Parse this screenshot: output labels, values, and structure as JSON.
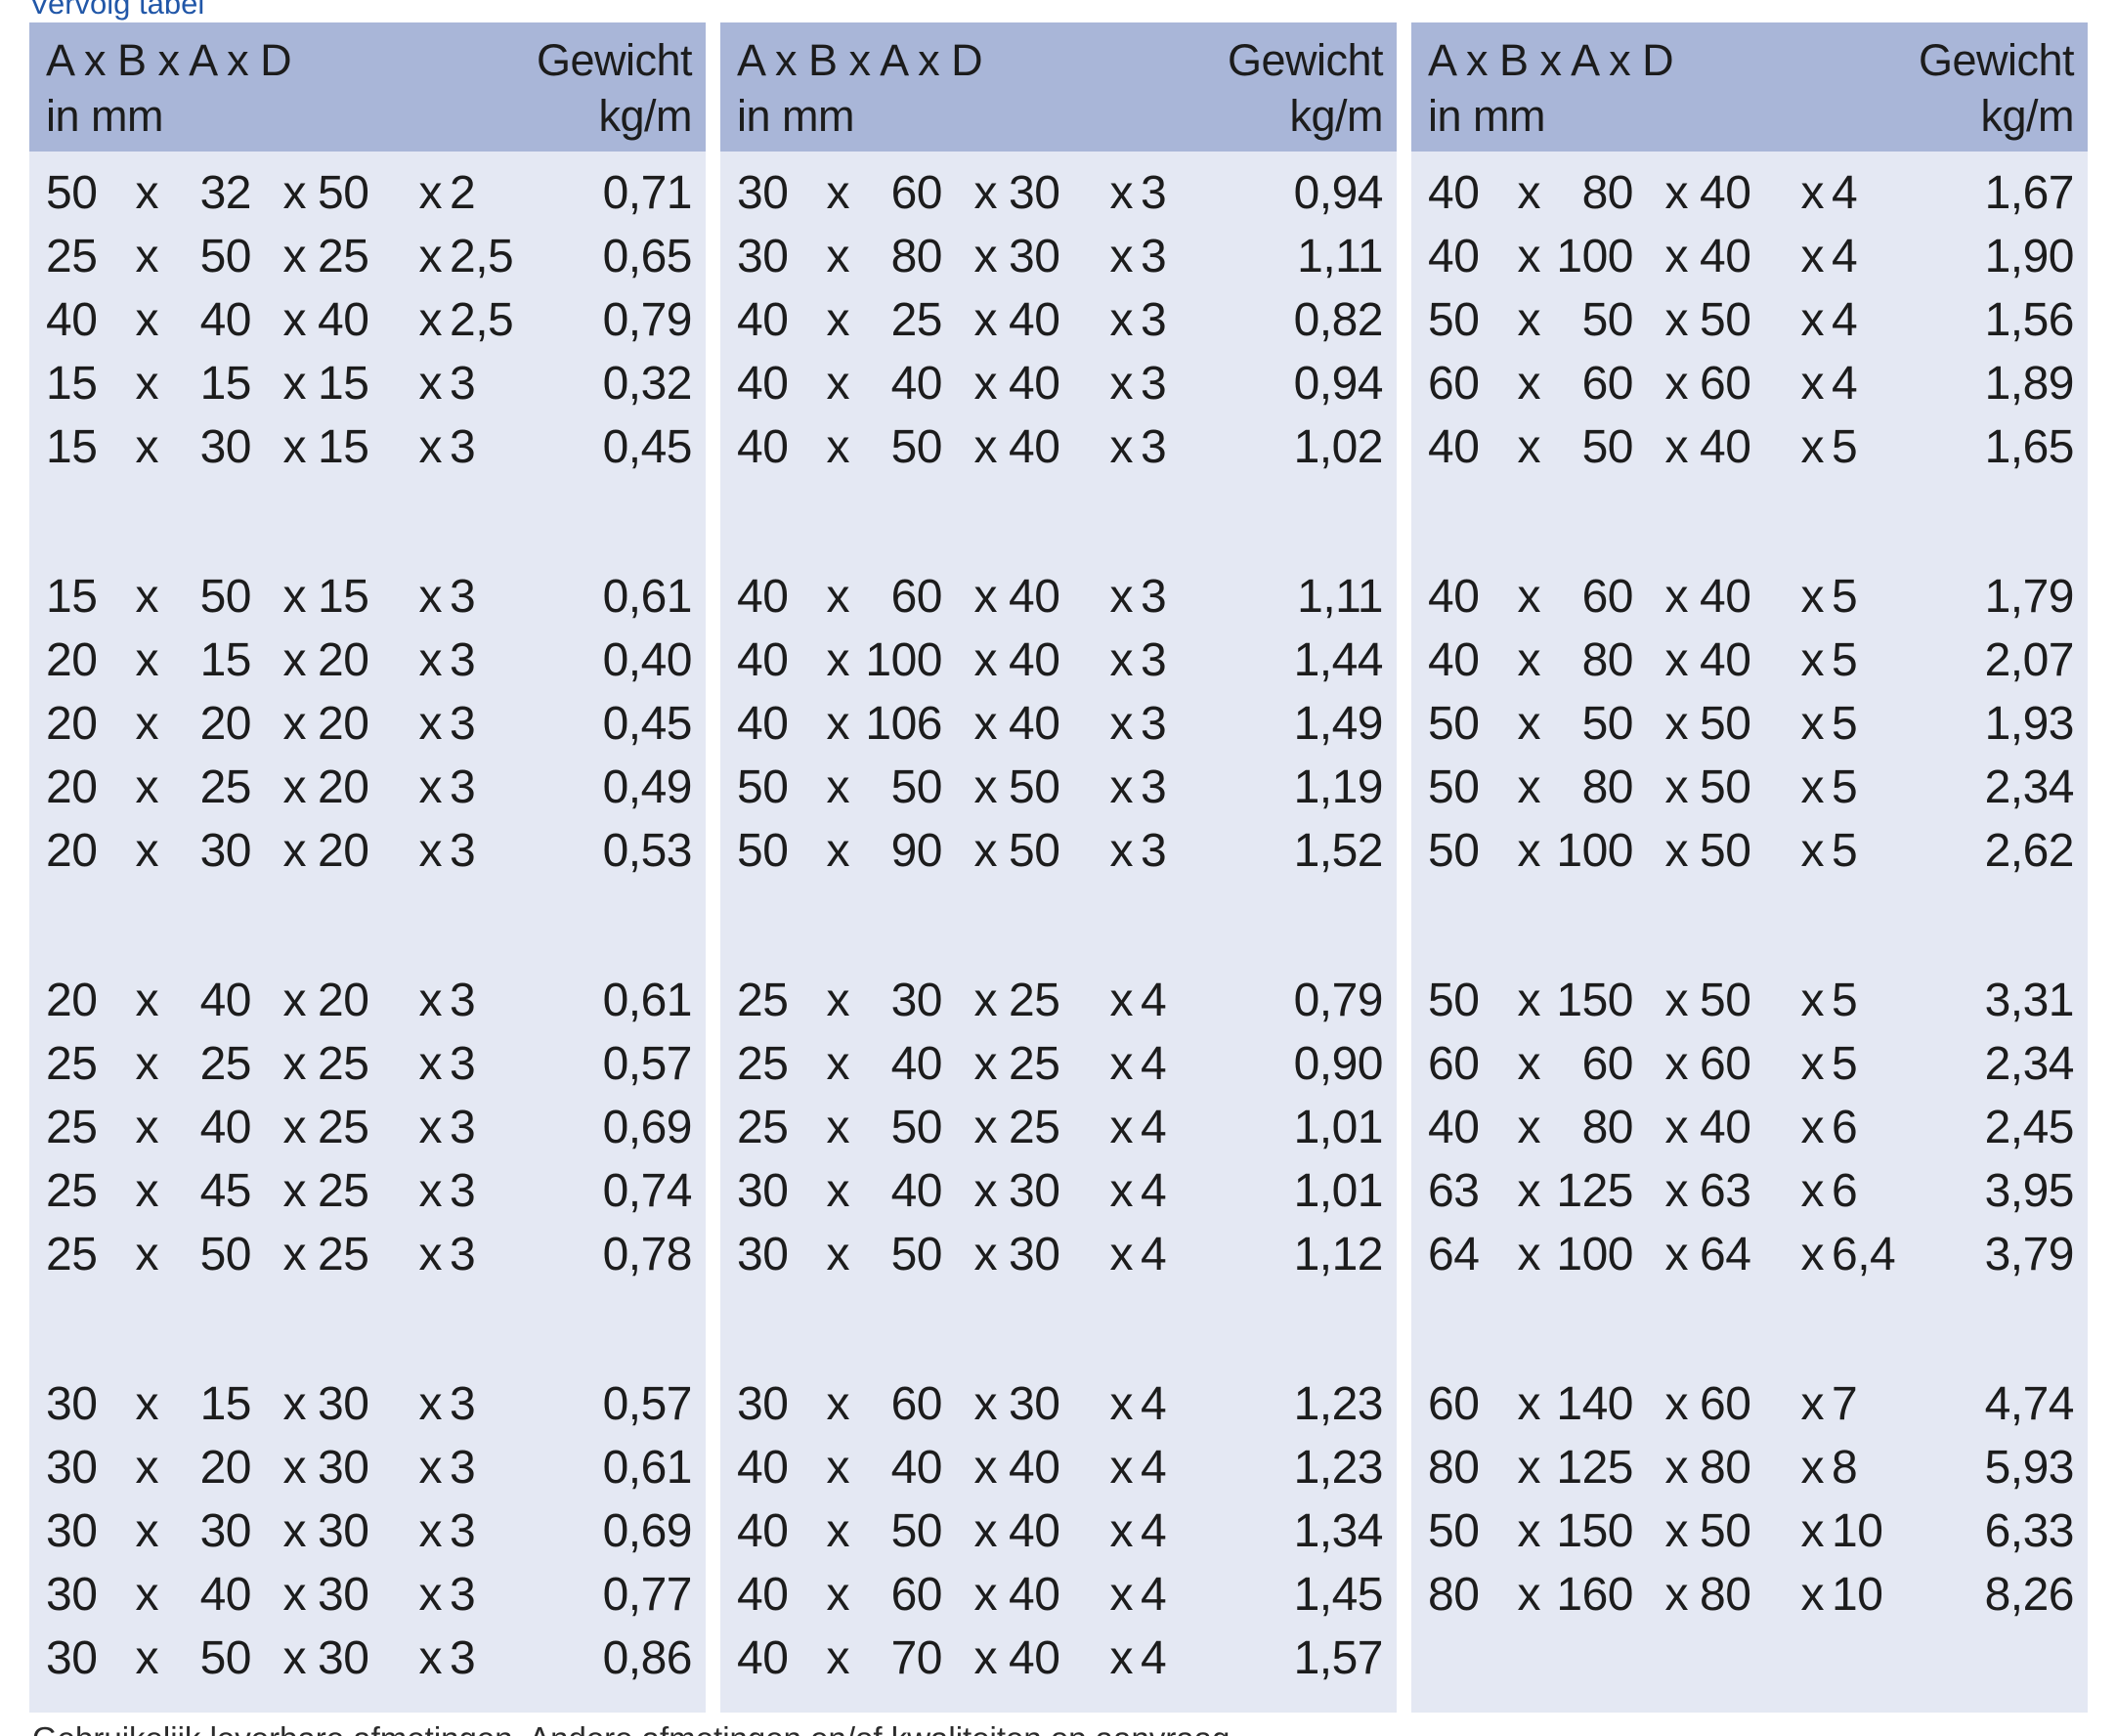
{
  "page": {
    "title": "Vervolg tabel",
    "footer_caption": "Gebruikelijk leverbare afmetingen. Andere afmetingen en/of kwaliteiten op aanvraag."
  },
  "colors": {
    "header_bg": "#a9b6d8",
    "body_bg": "#e4e8f3",
    "title_blue": "#2157a8",
    "text": "#1c1c1c"
  },
  "table_header": {
    "dims_line1": "A x B x A x D",
    "dims_line2": "in mm",
    "weight_line1": "Gewicht",
    "weight_line2": "kg/m",
    "x_sep": "x"
  },
  "chart_data": {
    "type": "table",
    "title": "Vervolg tabel",
    "columns": [
      "A",
      "B",
      "A",
      "D",
      "Gewicht kg/m"
    ]
  },
  "tables": [
    {
      "groups": [
        {
          "rows": [
            {
              "a": "50",
              "b": "32",
              "a2": "50",
              "d": "2",
              "weight": "0,71"
            },
            {
              "a": "25",
              "b": "50",
              "a2": "25",
              "d": "2,5",
              "weight": "0,65"
            },
            {
              "a": "40",
              "b": "40",
              "a2": "40",
              "d": "2,5",
              "weight": "0,79"
            },
            {
              "a": "15",
              "b": "15",
              "a2": "15",
              "d": "3",
              "weight": "0,32"
            },
            {
              "a": "15",
              "b": "30",
              "a2": "15",
              "d": "3",
              "weight": "0,45"
            }
          ]
        },
        {
          "rows": [
            {
              "a": "15",
              "b": "50",
              "a2": "15",
              "d": "3",
              "weight": "0,61"
            },
            {
              "a": "20",
              "b": "15",
              "a2": "20",
              "d": "3",
              "weight": "0,40"
            },
            {
              "a": "20",
              "b": "20",
              "a2": "20",
              "d": "3",
              "weight": "0,45"
            },
            {
              "a": "20",
              "b": "25",
              "a2": "20",
              "d": "3",
              "weight": "0,49"
            },
            {
              "a": "20",
              "b": "30",
              "a2": "20",
              "d": "3",
              "weight": "0,53"
            }
          ]
        },
        {
          "rows": [
            {
              "a": "20",
              "b": "40",
              "a2": "20",
              "d": "3",
              "weight": "0,61"
            },
            {
              "a": "25",
              "b": "25",
              "a2": "25",
              "d": "3",
              "weight": "0,57"
            },
            {
              "a": "25",
              "b": "40",
              "a2": "25",
              "d": "3",
              "weight": "0,69"
            },
            {
              "a": "25",
              "b": "45",
              "a2": "25",
              "d": "3",
              "weight": "0,74"
            },
            {
              "a": "25",
              "b": "50",
              "a2": "25",
              "d": "3",
              "weight": "0,78"
            }
          ]
        },
        {
          "rows": [
            {
              "a": "30",
              "b": "15",
              "a2": "30",
              "d": "3",
              "weight": "0,57"
            },
            {
              "a": "30",
              "b": "20",
              "a2": "30",
              "d": "3",
              "weight": "0,61"
            },
            {
              "a": "30",
              "b": "30",
              "a2": "30",
              "d": "3",
              "weight": "0,69"
            },
            {
              "a": "30",
              "b": "40",
              "a2": "30",
              "d": "3",
              "weight": "0,77"
            },
            {
              "a": "30",
              "b": "50",
              "a2": "30",
              "d": "3",
              "weight": "0,86"
            }
          ]
        }
      ]
    },
    {
      "groups": [
        {
          "rows": [
            {
              "a": "30",
              "b": "60",
              "a2": "30",
              "d": "3",
              "weight": "0,94"
            },
            {
              "a": "30",
              "b": "80",
              "a2": "30",
              "d": "3",
              "weight": "1,11"
            },
            {
              "a": "40",
              "b": "25",
              "a2": "40",
              "d": "3",
              "weight": "0,82"
            },
            {
              "a": "40",
              "b": "40",
              "a2": "40",
              "d": "3",
              "weight": "0,94"
            },
            {
              "a": "40",
              "b": "50",
              "a2": "40",
              "d": "3",
              "weight": "1,02"
            }
          ]
        },
        {
          "rows": [
            {
              "a": "40",
              "b": "60",
              "a2": "40",
              "d": "3",
              "weight": "1,11"
            },
            {
              "a": "40",
              "b": "100",
              "a2": "40",
              "d": "3",
              "weight": "1,44"
            },
            {
              "a": "40",
              "b": "106",
              "a2": "40",
              "d": "3",
              "weight": "1,49"
            },
            {
              "a": "50",
              "b": "50",
              "a2": "50",
              "d": "3",
              "weight": "1,19"
            },
            {
              "a": "50",
              "b": "90",
              "a2": "50",
              "d": "3",
              "weight": "1,52"
            }
          ]
        },
        {
          "rows": [
            {
              "a": "25",
              "b": "30",
              "a2": "25",
              "d": "4",
              "weight": "0,79"
            },
            {
              "a": "25",
              "b": "40",
              "a2": "25",
              "d": "4",
              "weight": "0,90"
            },
            {
              "a": "25",
              "b": "50",
              "a2": "25",
              "d": "4",
              "weight": "1,01"
            },
            {
              "a": "30",
              "b": "40",
              "a2": "30",
              "d": "4",
              "weight": "1,01"
            },
            {
              "a": "30",
              "b": "50",
              "a2": "30",
              "d": "4",
              "weight": "1,12"
            }
          ]
        },
        {
          "rows": [
            {
              "a": "30",
              "b": "60",
              "a2": "30",
              "d": "4",
              "weight": "1,23"
            },
            {
              "a": "40",
              "b": "40",
              "a2": "40",
              "d": "4",
              "weight": "1,23"
            },
            {
              "a": "40",
              "b": "50",
              "a2": "40",
              "d": "4",
              "weight": "1,34"
            },
            {
              "a": "40",
              "b": "60",
              "a2": "40",
              "d": "4",
              "weight": "1,45"
            },
            {
              "a": "40",
              "b": "70",
              "a2": "40",
              "d": "4",
              "weight": "1,57"
            }
          ]
        }
      ]
    },
    {
      "groups": [
        {
          "rows": [
            {
              "a": "40",
              "b": "80",
              "a2": "40",
              "d": "4",
              "weight": "1,67"
            },
            {
              "a": "40",
              "b": "100",
              "a2": "40",
              "d": "4",
              "weight": "1,90"
            },
            {
              "a": "50",
              "b": "50",
              "a2": "50",
              "d": "4",
              "weight": "1,56"
            },
            {
              "a": "60",
              "b": "60",
              "a2": "60",
              "d": "4",
              "weight": "1,89"
            },
            {
              "a": "40",
              "b": "50",
              "a2": "40",
              "d": "5",
              "weight": "1,65"
            }
          ]
        },
        {
          "rows": [
            {
              "a": "40",
              "b": "60",
              "a2": "40",
              "d": "5",
              "weight": "1,79"
            },
            {
              "a": "40",
              "b": "80",
              "a2": "40",
              "d": "5",
              "weight": "2,07"
            },
            {
              "a": "50",
              "b": "50",
              "a2": "50",
              "d": "5",
              "weight": "1,93"
            },
            {
              "a": "50",
              "b": "80",
              "a2": "50",
              "d": "5",
              "weight": "2,34"
            },
            {
              "a": "50",
              "b": "100",
              "a2": "50",
              "d": "5",
              "weight": "2,62"
            }
          ]
        },
        {
          "rows": [
            {
              "a": "50",
              "b": "150",
              "a2": "50",
              "d": "5",
              "weight": "3,31"
            },
            {
              "a": "60",
              "b": "60",
              "a2": "60",
              "d": "5",
              "weight": "2,34"
            },
            {
              "a": "40",
              "b": "80",
              "a2": "40",
              "d": "6",
              "weight": "2,45"
            },
            {
              "a": "63",
              "b": "125",
              "a2": "63",
              "d": "6",
              "weight": "3,95"
            },
            {
              "a": "64",
              "b": "100",
              "a2": "64",
              "d": "6,4",
              "weight": "3,79"
            }
          ]
        },
        {
          "rows": [
            {
              "a": "60",
              "b": "140",
              "a2": "60",
              "d": "7",
              "weight": "4,74"
            },
            {
              "a": "80",
              "b": "125",
              "a2": "80",
              "d": "8",
              "weight": "5,93"
            },
            {
              "a": "50",
              "b": "150",
              "a2": "50",
              "d": "10",
              "weight": "6,33"
            },
            {
              "a": "80",
              "b": "160",
              "a2": "80",
              "d": "10",
              "weight": "8,26"
            }
          ]
        }
      ]
    }
  ]
}
